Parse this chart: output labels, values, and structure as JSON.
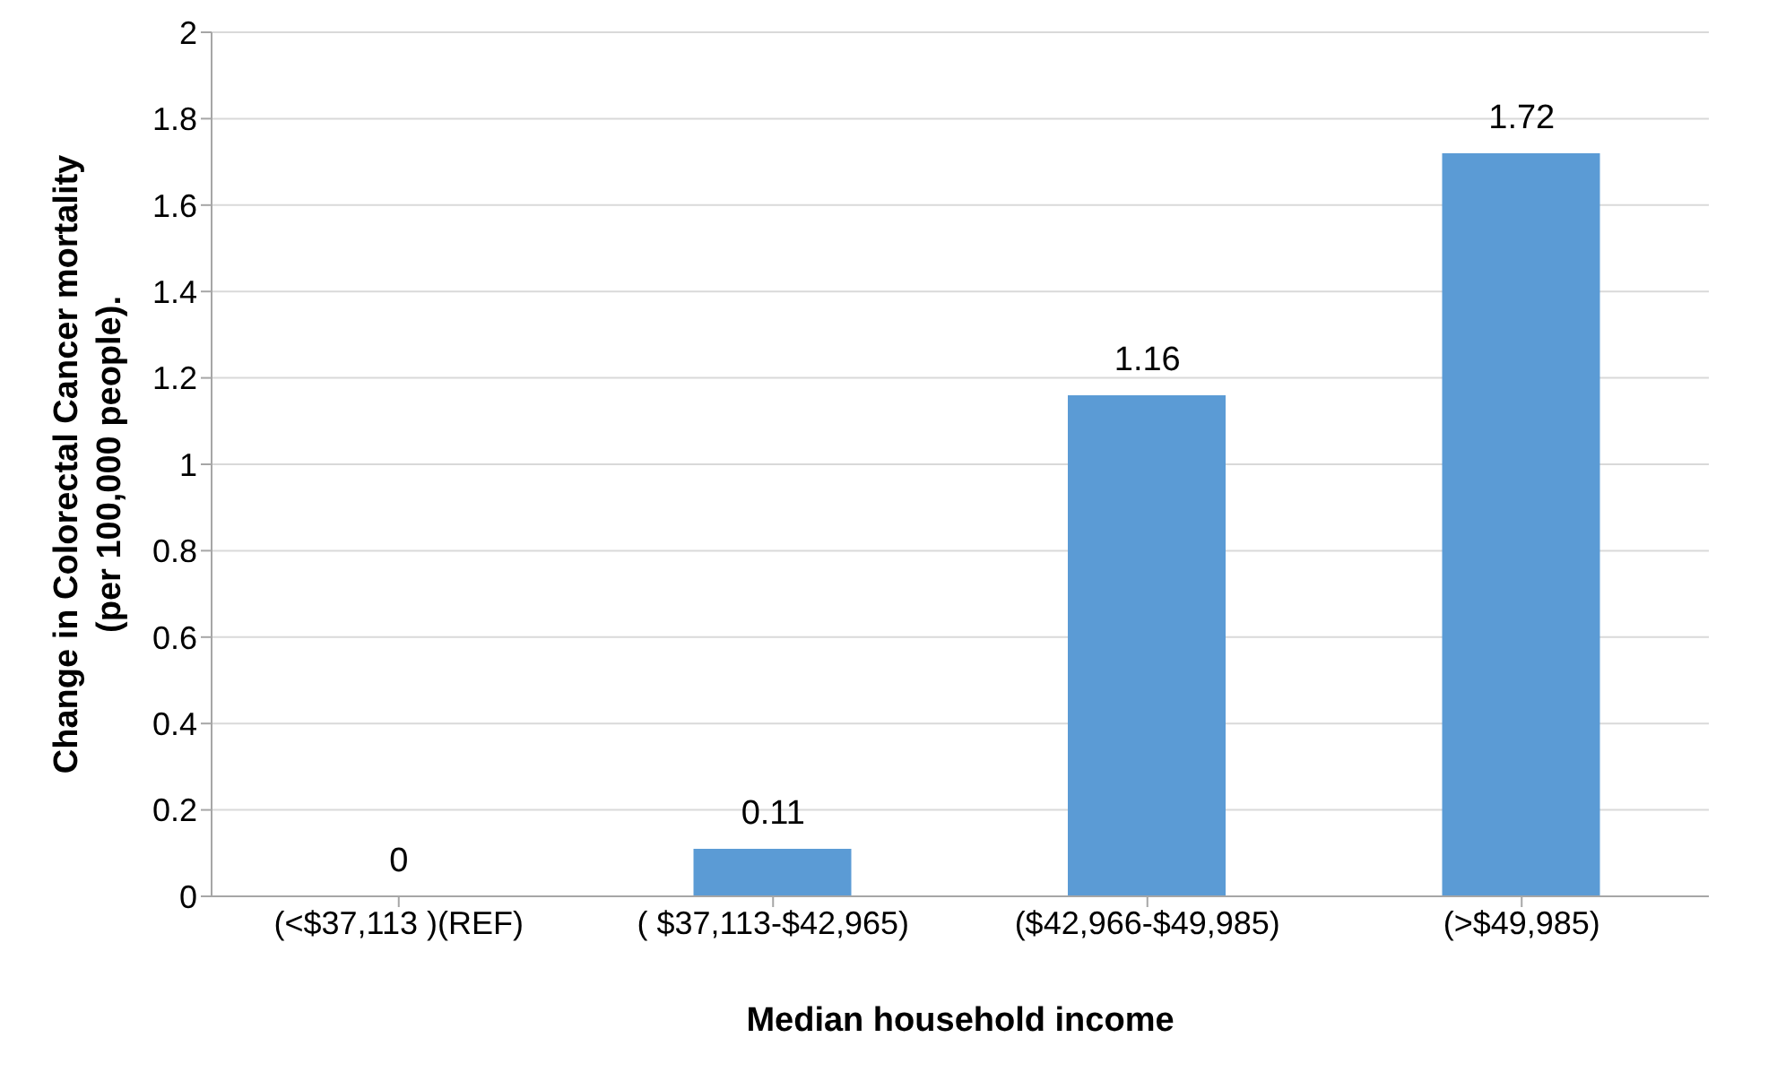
{
  "chart_data": {
    "type": "bar",
    "xlabel": "Median household income",
    "ylabel": "Change in Colorectal Cancer mortality (per 100,000 people).",
    "categories": [
      "(<$37,113 )(REF)",
      "( $37,113-$42,965)",
      "($42,966-$49,985)",
      "(>$49,985)"
    ],
    "values": [
      0,
      0.11,
      1.16,
      1.72
    ],
    "color": "#5b9bd5",
    "ylim": [
      0,
      2
    ],
    "yticks": [
      0,
      0.2,
      0.4,
      0.6,
      0.8,
      1,
      1.2,
      1.4,
      1.6,
      1.8,
      2
    ],
    "grid": "y",
    "data_labels": true,
    "legend": false
  }
}
